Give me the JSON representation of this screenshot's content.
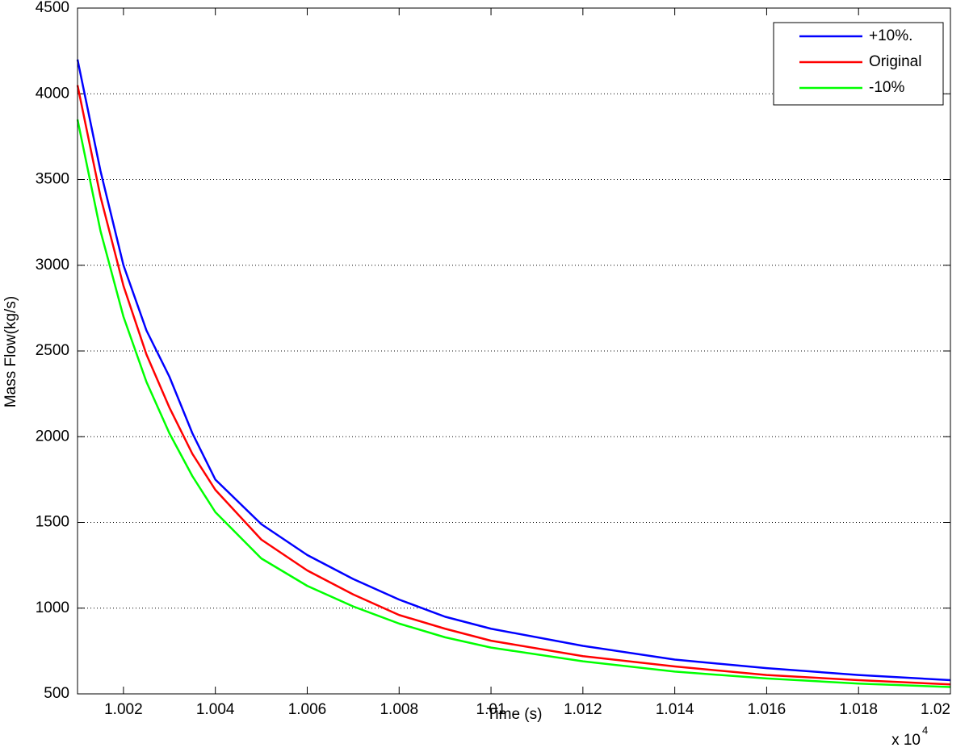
{
  "chart_data": {
    "type": "line",
    "xlabel": "Time (s)",
    "ylabel": "Mass Flow(kg/s)",
    "x_scale_label": "x 10",
    "x_scale_exponent": "4",
    "x": [
      1.001,
      1.0015,
      1.002,
      1.0025,
      1.003,
      1.0035,
      1.004,
      1.005,
      1.006,
      1.007,
      1.008,
      1.009,
      1.01,
      1.012,
      1.014,
      1.016,
      1.018,
      1.02
    ],
    "series": [
      {
        "name": "+10%.",
        "color": "#0000ff",
        "values": [
          4200,
          3550,
          3000,
          2620,
          2350,
          2020,
          1750,
          1490,
          1310,
          1170,
          1050,
          950,
          880,
          780,
          700,
          650,
          610,
          580
        ]
      },
      {
        "name": "Original",
        "color": "#ff0000",
        "values": [
          4050,
          3400,
          2880,
          2480,
          2170,
          1900,
          1690,
          1400,
          1220,
          1080,
          960,
          880,
          810,
          720,
          660,
          610,
          580,
          555
        ]
      },
      {
        "name": "-10%",
        "color": "#00ff00",
        "values": [
          3850,
          3200,
          2700,
          2320,
          2020,
          1770,
          1560,
          1290,
          1130,
          1010,
          910,
          830,
          770,
          690,
          630,
          590,
          560,
          540
        ]
      }
    ],
    "xlim": [
      1.001,
      1.02
    ],
    "xticks": [
      1.002,
      1.004,
      1.006,
      1.008,
      1.01,
      1.012,
      1.014,
      1.016,
      1.018,
      1.02
    ],
    "ylim": [
      500,
      4500
    ],
    "yticks": [
      500,
      1000,
      1500,
      2000,
      2500,
      3000,
      3500,
      4000,
      4500
    ],
    "ygrid": true,
    "legend": "top-right"
  }
}
